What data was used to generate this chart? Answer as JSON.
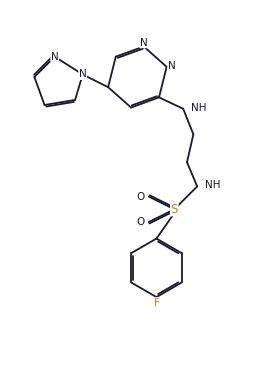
{
  "background_color": "#ffffff",
  "line_color": "#1a1a2e",
  "N_color": "#1a1a2e",
  "F_color": "#b8860b",
  "S_color": "#b8860b",
  "figsize": [
    2.57,
    3.83
  ],
  "dpi": 100,
  "lw": 1.3,
  "xlim": [
    0,
    10
  ],
  "ylim": [
    0,
    15
  ]
}
